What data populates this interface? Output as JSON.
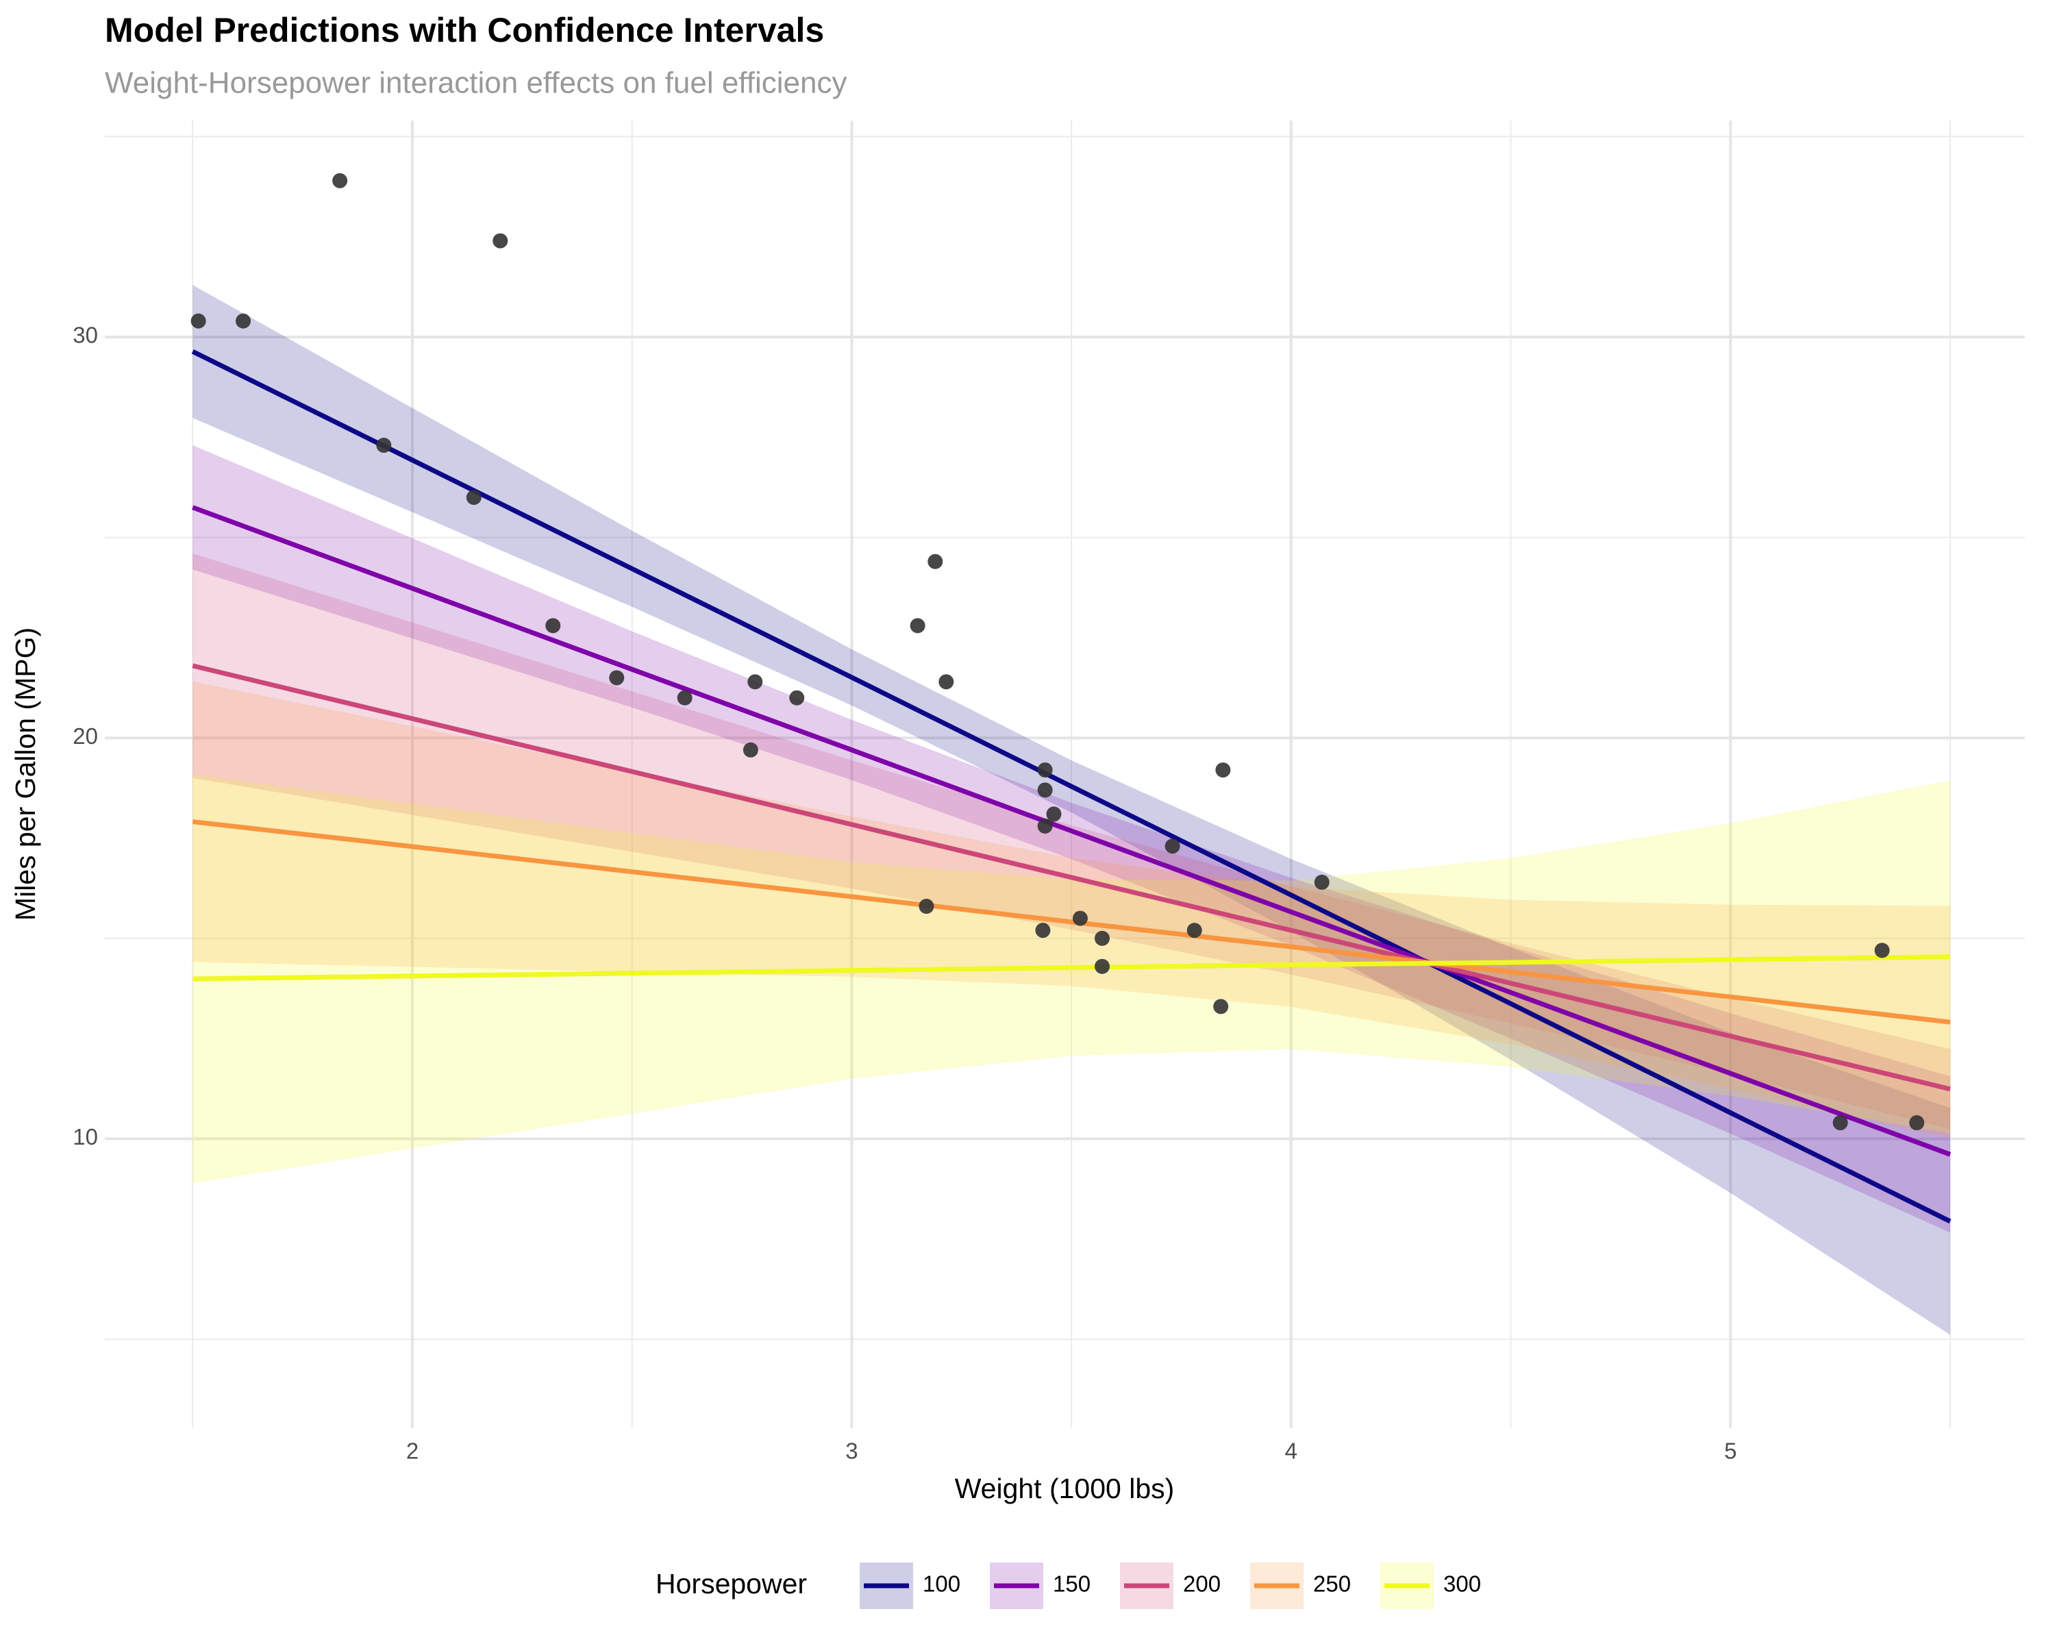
{
  "chart_data": {
    "type": "line",
    "title": "Model Predictions with Confidence Intervals",
    "subtitle": "Weight-Horsepower interaction effects on fuel efficiency",
    "x_label": "Weight (1000 lbs)",
    "y_label": "Miles per Gallon (MPG)",
    "legend_title": "Horsepower",
    "legend_position": "bottom",
    "grid": true,
    "xlim": [
      1.3,
      5.67
    ],
    "ylim": [
      2.78,
      35.4
    ],
    "xticks": [
      2,
      3,
      4,
      5
    ],
    "yticks": [
      10,
      20,
      30
    ],
    "x": [
      1.5,
      2,
      2.5,
      3,
      3.5,
      4,
      4.5,
      5,
      5.5
    ],
    "series": [
      {
        "name": "100",
        "color": "#0d0887",
        "values": [
          29.64,
          26.93,
          24.22,
          21.51,
          18.79,
          16.08,
          13.37,
          10.65,
          7.94
        ],
        "lower": [
          27.98,
          25.63,
          23.27,
          20.81,
          18.14,
          15.18,
          11.97,
          8.65,
          5.11
        ],
        "upper": [
          31.3,
          28.23,
          25.17,
          22.21,
          19.44,
          16.98,
          14.77,
          12.65,
          10.77
        ]
      },
      {
        "name": "150",
        "color": "#7e03a8",
        "values": [
          25.75,
          23.73,
          21.71,
          19.7,
          17.68,
          15.66,
          13.65,
          11.63,
          9.61
        ],
        "lower": [
          24.2,
          22.48,
          20.76,
          18.95,
          16.98,
          14.81,
          12.5,
          10.13,
          7.66
        ],
        "upper": [
          27.3,
          24.98,
          22.66,
          20.45,
          18.38,
          16.51,
          14.8,
          13.13,
          11.56
        ]
      },
      {
        "name": "200",
        "color": "#cc4778",
        "values": [
          21.8,
          20.48,
          19.16,
          17.84,
          16.52,
          15.2,
          13.88,
          12.56,
          11.24
        ],
        "lower": [
          19.0,
          18.08,
          17.16,
          16.24,
          15.22,
          14.1,
          12.88,
          11.61,
          10.24
        ],
        "upper": [
          24.6,
          22.88,
          21.16,
          19.44,
          17.82,
          16.3,
          14.88,
          13.51,
          12.24
        ]
      },
      {
        "name": "250",
        "color": "#f89540",
        "values": [
          17.91,
          17.29,
          16.66,
          16.04,
          15.41,
          14.79,
          14.16,
          13.54,
          12.91
        ],
        "lower": [
          14.41,
          14.29,
          14.16,
          14.04,
          13.81,
          13.29,
          12.36,
          11.24,
          10.01
        ],
        "upper": [
          21.41,
          20.29,
          19.16,
          18.04,
          17.01,
          16.29,
          15.96,
          15.84,
          15.81
        ]
      },
      {
        "name": "300",
        "color": "#f0f921",
        "values": [
          13.99,
          14.06,
          14.13,
          14.2,
          14.27,
          14.34,
          14.4,
          14.47,
          14.54
        ],
        "lower": [
          8.89,
          9.76,
          10.63,
          11.5,
          12.07,
          12.24,
          11.8,
          11.07,
          10.14
        ],
        "upper": [
          19.09,
          18.36,
          17.63,
          16.9,
          16.47,
          16.44,
          17.0,
          17.87,
          18.94
        ]
      }
    ],
    "points": {
      "color": "#333333",
      "x": [
        2.62,
        2.875,
        2.32,
        3.215,
        3.44,
        3.46,
        3.57,
        3.19,
        3.15,
        3.44,
        3.44,
        4.07,
        3.73,
        3.78,
        5.25,
        5.424,
        5.345,
        2.2,
        1.615,
        1.835,
        2.465,
        3.52,
        3.435,
        3.84,
        3.845,
        1.935,
        2.14,
        1.513,
        3.17,
        2.77,
        3.57,
        2.78
      ],
      "values": [
        21,
        21,
        22.8,
        21.4,
        18.7,
        18.1,
        14.3,
        24.4,
        22.8,
        19.2,
        17.8,
        16.4,
        17.3,
        15.2,
        10.4,
        10.4,
        14.7,
        32.4,
        30.4,
        33.9,
        21.5,
        15.5,
        15.2,
        13.3,
        19.2,
        27.3,
        26,
        30.4,
        15.8,
        19.7,
        15,
        21.4
      ]
    }
  }
}
